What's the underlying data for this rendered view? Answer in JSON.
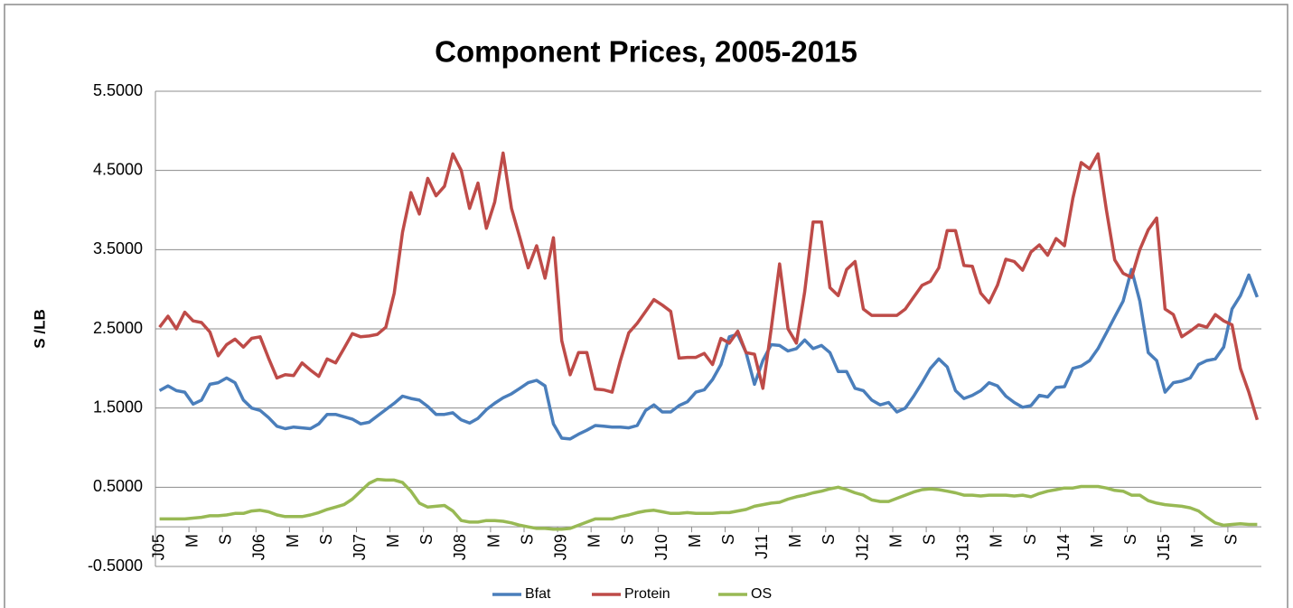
{
  "chart_data": {
    "type": "line",
    "title": "Component Prices, 2005-2015",
    "y_label": "S /LB",
    "categories": [
      "J05",
      null,
      null,
      null,
      "M",
      null,
      null,
      null,
      "S",
      null,
      null,
      null,
      "J06",
      null,
      null,
      null,
      "M",
      null,
      null,
      null,
      "S",
      null,
      null,
      null,
      "J07",
      null,
      null,
      null,
      "M",
      null,
      null,
      null,
      "S",
      null,
      null,
      null,
      "J08",
      null,
      null,
      null,
      "M",
      null,
      null,
      null,
      "S",
      null,
      null,
      null,
      "J09",
      null,
      null,
      null,
      "M",
      null,
      null,
      null,
      "S",
      null,
      null,
      null,
      "J10",
      null,
      null,
      null,
      "M",
      null,
      null,
      null,
      "S",
      null,
      null,
      null,
      "J11",
      null,
      null,
      null,
      "M",
      null,
      null,
      null,
      "S",
      null,
      null,
      null,
      "J12",
      null,
      null,
      null,
      "M",
      null,
      null,
      null,
      "S",
      null,
      null,
      null,
      "J13",
      null,
      null,
      null,
      "M",
      null,
      null,
      null,
      "S",
      null,
      null,
      null,
      "J14",
      null,
      null,
      null,
      "M",
      null,
      null,
      null,
      "S",
      null,
      null,
      null,
      "J15",
      null,
      null,
      null,
      "M",
      null,
      null,
      null,
      "S",
      null,
      null,
      null
    ],
    "series": [
      {
        "name": "Bfat",
        "color": "#4a7ebb",
        "values": [
          1.72,
          1.78,
          1.72,
          1.7,
          1.55,
          1.6,
          1.8,
          1.82,
          1.88,
          1.82,
          1.6,
          1.5,
          1.47,
          1.38,
          1.27,
          1.24,
          1.26,
          1.25,
          1.24,
          1.3,
          1.42,
          1.42,
          1.39,
          1.36,
          1.3,
          1.32,
          1.4,
          1.48,
          1.56,
          1.65,
          1.62,
          1.6,
          1.52,
          1.42,
          1.42,
          1.44,
          1.35,
          1.31,
          1.37,
          1.48,
          1.56,
          1.63,
          1.68,
          1.75,
          1.82,
          1.85,
          1.78,
          1.3,
          1.12,
          1.11,
          1.17,
          1.22,
          1.28,
          1.27,
          1.26,
          1.26,
          1.25,
          1.28,
          1.47,
          1.54,
          1.45,
          1.45,
          1.53,
          1.58,
          1.7,
          1.73,
          1.86,
          2.05,
          2.4,
          2.43,
          2.2,
          1.8,
          2.1,
          2.3,
          2.29,
          2.22,
          2.25,
          2.36,
          2.25,
          2.29,
          2.2,
          1.96,
          1.96,
          1.75,
          1.72,
          1.6,
          1.54,
          1.57,
          1.45,
          1.5,
          1.65,
          1.82,
          2.0,
          2.12,
          2.02,
          1.72,
          1.62,
          1.66,
          1.72,
          1.82,
          1.78,
          1.65,
          1.57,
          1.51,
          1.53,
          1.66,
          1.64,
          1.76,
          1.77,
          2.0,
          2.03,
          2.1,
          2.25,
          2.45,
          2.65,
          2.85,
          3.25,
          2.85,
          2.2,
          2.1,
          1.7,
          1.82,
          1.84,
          1.88,
          2.05,
          2.1,
          2.12,
          2.27,
          2.75,
          2.92,
          3.18,
          2.9
        ]
      },
      {
        "name": "Protein",
        "color": "#be4b48",
        "values": [
          2.52,
          2.66,
          2.5,
          2.71,
          2.6,
          2.58,
          2.46,
          2.16,
          2.3,
          2.37,
          2.27,
          2.38,
          2.4,
          2.13,
          1.88,
          1.92,
          1.91,
          2.07,
          1.98,
          1.9,
          2.12,
          2.07,
          2.25,
          2.44,
          2.4,
          2.41,
          2.43,
          2.52,
          2.95,
          3.72,
          4.22,
          3.95,
          4.4,
          4.18,
          4.3,
          4.71,
          4.5,
          4.02,
          4.34,
          3.77,
          4.1,
          4.72,
          4.02,
          3.65,
          3.27,
          3.55,
          3.14,
          3.65,
          2.35,
          1.92,
          2.2,
          2.2,
          1.74,
          1.73,
          1.7,
          2.1,
          2.45,
          2.57,
          2.72,
          2.87,
          2.8,
          2.72,
          2.13,
          2.14,
          2.14,
          2.19,
          2.05,
          2.38,
          2.32,
          2.47,
          2.2,
          2.18,
          1.75,
          2.5,
          3.32,
          2.5,
          2.32,
          2.97,
          3.85,
          3.85,
          3.02,
          2.92,
          3.25,
          3.35,
          2.75,
          2.67,
          2.67,
          2.67,
          2.67,
          2.75,
          2.9,
          3.05,
          3.1,
          3.27,
          3.74,
          3.74,
          3.3,
          3.29,
          2.95,
          2.83,
          3.05,
          3.38,
          3.35,
          3.24,
          3.47,
          3.56,
          3.43,
          3.64,
          3.55,
          4.15,
          4.6,
          4.52,
          4.71,
          4.0,
          3.37,
          3.2,
          3.15,
          3.5,
          3.75,
          3.9,
          2.75,
          2.68,
          2.4,
          2.47,
          2.55,
          2.52,
          2.68,
          2.6,
          2.55,
          2.0,
          1.7,
          1.35
        ]
      },
      {
        "name": "OS",
        "color": "#98b954",
        "values": [
          0.1,
          0.1,
          0.1,
          0.1,
          0.11,
          0.12,
          0.14,
          0.14,
          0.15,
          0.17,
          0.17,
          0.2,
          0.21,
          0.19,
          0.15,
          0.13,
          0.13,
          0.13,
          0.15,
          0.18,
          0.22,
          0.25,
          0.28,
          0.35,
          0.45,
          0.55,
          0.6,
          0.59,
          0.59,
          0.56,
          0.45,
          0.3,
          0.25,
          0.26,
          0.27,
          0.2,
          0.08,
          0.06,
          0.06,
          0.08,
          0.08,
          0.07,
          0.05,
          0.02,
          0.0,
          -0.02,
          -0.02,
          -0.03,
          -0.03,
          -0.02,
          0.02,
          0.06,
          0.1,
          0.1,
          0.1,
          0.13,
          0.15,
          0.18,
          0.2,
          0.21,
          0.19,
          0.17,
          0.17,
          0.18,
          0.17,
          0.17,
          0.17,
          0.18,
          0.18,
          0.2,
          0.22,
          0.26,
          0.28,
          0.3,
          0.31,
          0.35,
          0.38,
          0.4,
          0.43,
          0.45,
          0.48,
          0.5,
          0.47,
          0.43,
          0.4,
          0.34,
          0.32,
          0.32,
          0.36,
          0.4,
          0.44,
          0.47,
          0.48,
          0.47,
          0.45,
          0.43,
          0.4,
          0.4,
          0.39,
          0.4,
          0.4,
          0.4,
          0.39,
          0.4,
          0.38,
          0.42,
          0.45,
          0.47,
          0.49,
          0.49,
          0.51,
          0.51,
          0.51,
          0.49,
          0.46,
          0.45,
          0.4,
          0.4,
          0.33,
          0.3,
          0.28,
          0.27,
          0.26,
          0.24,
          0.2,
          0.12,
          0.05,
          0.02,
          0.03,
          0.04,
          0.03,
          0.03
        ]
      }
    ],
    "ylim": [
      -0.5,
      5.5
    ],
    "yticks": [
      {
        "value": -0.5,
        "label": "-0.5000"
      },
      {
        "value": 0.5,
        "label": "0.5000"
      },
      {
        "value": 1.5,
        "label": "1.5000"
      },
      {
        "value": 2.5,
        "label": "2.5000"
      },
      {
        "value": 3.5,
        "label": "3.5000"
      },
      {
        "value": 4.5,
        "label": "4.5000"
      },
      {
        "value": 5.5,
        "label": "5.5000"
      }
    ],
    "grid": true,
    "legend": "bottom"
  }
}
